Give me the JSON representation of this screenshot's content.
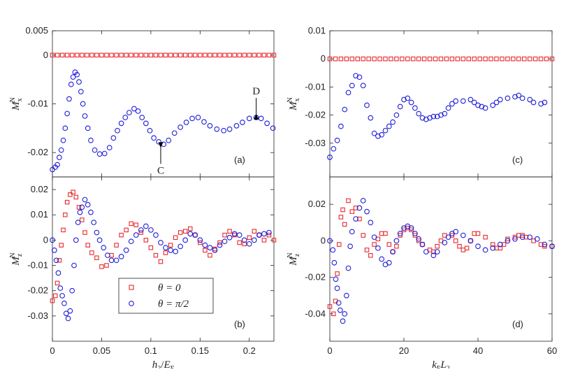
{
  "chart_data": [
    {
      "type": "scatter",
      "label": "(a)",
      "ylabel": [
        {
          "text": "M",
          "style": "i"
        },
        {
          "text": "x",
          "style": "sub"
        },
        {
          "text": "N",
          "style": "sup"
        }
      ],
      "xlim": [
        0,
        0.225
      ],
      "xticks": [
        0,
        0.05,
        0.1,
        0.15,
        0.2
      ],
      "xticklabels": false,
      "ylim": [
        -0.025,
        0.005
      ],
      "yticks": [
        -0.02,
        -0.01,
        0,
        0.005
      ],
      "annotations": [
        {
          "text": "C",
          "x": 0.11,
          "y": -0.0183,
          "side": "below"
        },
        {
          "text": "D",
          "x": 0.207,
          "y": -0.0128,
          "side": "above"
        }
      ],
      "series": [
        {
          "color": "#e8282d",
          "marker": "square",
          "x": [
            0,
            0.005,
            0.01,
            0.015,
            0.02,
            0.025,
            0.03,
            0.035,
            0.04,
            0.045,
            0.05,
            0.055,
            0.06,
            0.065,
            0.07,
            0.075,
            0.08,
            0.085,
            0.09,
            0.095,
            0.1,
            0.105,
            0.11,
            0.115,
            0.12,
            0.125,
            0.13,
            0.135,
            0.14,
            0.145,
            0.15,
            0.155,
            0.16,
            0.165,
            0.17,
            0.175,
            0.18,
            0.185,
            0.19,
            0.195,
            0.2,
            0.205,
            0.21,
            0.215,
            0.22,
            0.225
          ],
          "values": [
            0,
            0,
            0,
            0,
            0,
            0,
            0,
            0,
            0,
            0,
            0,
            0,
            0,
            0,
            0,
            0,
            0,
            0,
            0,
            0,
            0,
            0,
            0,
            0,
            0,
            0,
            0,
            0,
            0,
            0,
            0,
            0,
            0,
            0,
            0,
            0,
            0,
            0,
            0,
            0,
            0,
            0,
            0,
            0,
            0,
            0
          ]
        },
        {
          "color": "#1f1fd8",
          "marker": "circle",
          "x": [
            0,
            0.003,
            0.005,
            0.007,
            0.009,
            0.011,
            0.013,
            0.015,
            0.017,
            0.019,
            0.021,
            0.023,
            0.025,
            0.027,
            0.029,
            0.031,
            0.033,
            0.036,
            0.039,
            0.043,
            0.048,
            0.053,
            0.058,
            0.062,
            0.066,
            0.07,
            0.074,
            0.078,
            0.083,
            0.087,
            0.091,
            0.095,
            0.099,
            0.103,
            0.108,
            0.113,
            0.118,
            0.124,
            0.13,
            0.136,
            0.142,
            0.148,
            0.154,
            0.16,
            0.167,
            0.174,
            0.18,
            0.187,
            0.193,
            0.2,
            0.207,
            0.212,
            0.218,
            0.224
          ],
          "values": [
            -0.0235,
            -0.023,
            -0.0225,
            -0.021,
            -0.0195,
            -0.0175,
            -0.015,
            -0.012,
            -0.009,
            -0.006,
            -0.0045,
            -0.0035,
            -0.004,
            -0.0055,
            -0.0075,
            -0.01,
            -0.0125,
            -0.015,
            -0.0175,
            -0.0195,
            -0.0203,
            -0.0202,
            -0.019,
            -0.017,
            -0.0155,
            -0.014,
            -0.0128,
            -0.0118,
            -0.011,
            -0.0115,
            -0.0128,
            -0.014,
            -0.0155,
            -0.017,
            -0.0178,
            -0.0183,
            -0.0175,
            -0.016,
            -0.0148,
            -0.0138,
            -0.013,
            -0.0128,
            -0.0137,
            -0.0145,
            -0.0152,
            -0.0155,
            -0.0152,
            -0.0145,
            -0.0138,
            -0.013,
            -0.0128,
            -0.013,
            -0.014,
            -0.015
          ]
        }
      ]
    },
    {
      "type": "scatter",
      "label": "(b)",
      "ylabel": [
        {
          "text": "M",
          "style": "i"
        },
        {
          "text": "z",
          "style": "sub"
        },
        {
          "text": "N",
          "style": "sup"
        }
      ],
      "xlabel": [
        {
          "text": "h",
          "style": "i"
        },
        {
          "text": "2",
          "style": "sub"
        },
        {
          "text": "/",
          "style": "n"
        },
        {
          "text": "E",
          "style": "i"
        },
        {
          "text": "F",
          "style": "sub"
        }
      ],
      "xlim": [
        0,
        0.225
      ],
      "xticks": [
        0,
        0.05,
        0.1,
        0.15,
        0.2
      ],
      "ylim": [
        -0.04,
        0.025
      ],
      "yticks": [
        -0.03,
        -0.02,
        -0.01,
        0,
        0.01,
        0.02
      ],
      "legend": "lower center",
      "series": [
        {
          "name": "θ = 0",
          "color": "#e8282d",
          "marker": "square",
          "x": [
            0,
            0.003,
            0.005,
            0.007,
            0.009,
            0.011,
            0.013,
            0.015,
            0.018,
            0.021,
            0.024,
            0.027,
            0.03,
            0.033,
            0.036,
            0.04,
            0.045,
            0.05,
            0.055,
            0.06,
            0.065,
            0.07,
            0.075,
            0.08,
            0.085,
            0.09,
            0.095,
            0.1,
            0.105,
            0.11,
            0.115,
            0.12,
            0.125,
            0.13,
            0.135,
            0.14,
            0.145,
            0.15,
            0.155,
            0.16,
            0.165,
            0.17,
            0.175,
            0.18,
            0.185,
            0.19,
            0.195,
            0.2,
            0.205,
            0.21,
            0.215,
            0.22,
            0.225
          ],
          "values": [
            -0.024,
            -0.022,
            -0.017,
            -0.008,
            -0.002,
            0.004,
            0.01,
            0.015,
            0.018,
            0.019,
            0.017,
            0.013,
            0.008,
            0.003,
            -0.002,
            -0.005,
            -0.007,
            -0.0105,
            -0.01,
            -0.006,
            -0.002,
            0.002,
            0.004,
            0.0065,
            0.006,
            0.003,
            0,
            -0.003,
            -0.006,
            -0.0085,
            -0.005,
            -0.002,
            0.001,
            0.003,
            0.0035,
            0.0045,
            0.002,
            -0.001,
            -0.004,
            -0.006,
            -0.0035,
            -0.001,
            0.002,
            0.0035,
            0.002,
            -0.001,
            -0.0015,
            0.001,
            0.0035,
            0.002,
            0,
            0.002,
            0
          ]
        },
        {
          "name": "θ = π/2",
          "color": "#1f1fd8",
          "marker": "circle",
          "x": [
            0,
            0.002,
            0.004,
            0.006,
            0.008,
            0.01,
            0.012,
            0.014,
            0.016,
            0.018,
            0.02,
            0.022,
            0.024,
            0.026,
            0.028,
            0.03,
            0.033,
            0.036,
            0.039,
            0.042,
            0.045,
            0.048,
            0.052,
            0.056,
            0.06,
            0.065,
            0.07,
            0.075,
            0.08,
            0.085,
            0.09,
            0.095,
            0.1,
            0.105,
            0.11,
            0.115,
            0.12,
            0.125,
            0.13,
            0.135,
            0.14,
            0.145,
            0.15,
            0.155,
            0.16,
            0.165,
            0.17,
            0.175,
            0.18,
            0.185,
            0.19,
            0.195,
            0.2,
            0.205,
            0.21,
            0.215,
            0.22
          ],
          "values": [
            0,
            -0.004,
            -0.008,
            -0.013,
            -0.019,
            -0.022,
            -0.025,
            -0.029,
            -0.031,
            -0.028,
            -0.02,
            -0.01,
            0,
            0.007,
            0.011,
            0.013,
            0.016,
            0.014,
            0.011,
            0.007,
            0.003,
            0,
            -0.003,
            -0.006,
            -0.008,
            -0.008,
            -0.0065,
            -0.004,
            -0.0005,
            0.002,
            0.004,
            0.0055,
            0.004,
            0.002,
            -0.001,
            -0.003,
            -0.004,
            -0.0045,
            -0.0025,
            0,
            0.0025,
            0.002,
            0,
            -0.002,
            -0.003,
            -0.004,
            -0.002,
            -0.0005,
            0.001,
            0.0025,
            0.002,
            0,
            -0.0015,
            0,
            0.002,
            0.0025,
            0.003
          ]
        }
      ]
    },
    {
      "type": "scatter",
      "label": "(c)",
      "ylabel": [
        {
          "text": "M",
          "style": "i"
        },
        {
          "text": "x",
          "style": "sub"
        },
        {
          "text": "N",
          "style": "sup"
        }
      ],
      "xlim": [
        0,
        60
      ],
      "xticks": [
        0,
        20,
        40,
        60
      ],
      "xticklabels": false,
      "ylim": [
        -0.042,
        0.01
      ],
      "yticks": [
        -0.03,
        -0.02,
        -0.01,
        0,
        0.01
      ],
      "series": [
        {
          "color": "#e8282d",
          "marker": "square",
          "x": [
            0,
            1.5,
            3,
            4.5,
            6,
            7.5,
            9,
            10.5,
            12,
            13.5,
            15,
            16.5,
            18,
            19.5,
            21,
            22.5,
            24,
            25.5,
            27,
            28.5,
            30,
            31.5,
            33,
            34.5,
            36,
            37.5,
            39,
            40.5,
            42,
            43.5,
            45,
            46.5,
            48,
            49.5,
            51,
            52.5,
            54,
            55.5,
            57,
            58.5,
            60
          ],
          "values": [
            0,
            0,
            0,
            0,
            0,
            0,
            0,
            0,
            0,
            0,
            0,
            0,
            0,
            0,
            0,
            0,
            0,
            0,
            0,
            0,
            0,
            0,
            0,
            0,
            0,
            0,
            0,
            0,
            0,
            0,
            0,
            0,
            0,
            0,
            0,
            0,
            0,
            0,
            0,
            0,
            0
          ]
        },
        {
          "color": "#1f1fd8",
          "marker": "circle",
          "x": [
            0,
            1,
            2,
            3,
            4,
            5,
            6,
            7,
            8,
            9,
            10,
            11,
            12,
            13,
            14,
            15,
            16,
            17,
            18,
            19,
            20,
            21,
            22,
            23,
            24,
            25,
            26,
            27,
            28,
            29,
            30,
            31,
            32,
            33,
            34,
            36,
            38,
            39,
            40,
            41,
            42,
            44,
            45,
            46,
            48,
            50,
            51,
            52,
            54,
            55,
            57,
            58
          ],
          "values": [
            -0.035,
            -0.032,
            -0.029,
            -0.024,
            -0.018,
            -0.012,
            -0.0095,
            -0.006,
            -0.0065,
            -0.0095,
            -0.0165,
            -0.021,
            -0.0265,
            -0.0275,
            -0.027,
            -0.0255,
            -0.024,
            -0.0225,
            -0.02,
            -0.017,
            -0.0145,
            -0.014,
            -0.0155,
            -0.0175,
            -0.0195,
            -0.021,
            -0.0215,
            -0.021,
            -0.0205,
            -0.0205,
            -0.02,
            -0.0195,
            -0.0175,
            -0.016,
            -0.015,
            -0.015,
            -0.0145,
            -0.0155,
            -0.0165,
            -0.017,
            -0.0175,
            -0.0165,
            -0.0155,
            -0.0145,
            -0.014,
            -0.0135,
            -0.013,
            -0.014,
            -0.0145,
            -0.0155,
            -0.016,
            -0.0155
          ]
        }
      ]
    },
    {
      "type": "scatter",
      "label": "(d)",
      "ylabel": [
        {
          "text": "M",
          "style": "i"
        },
        {
          "text": "z",
          "style": "sub"
        },
        {
          "text": "N",
          "style": "sup"
        }
      ],
      "xlabel": [
        {
          "text": "k",
          "style": "i"
        },
        {
          "text": "F",
          "style": "sub"
        },
        {
          "text": "L",
          "style": "i"
        },
        {
          "text": "2",
          "style": "sub"
        }
      ],
      "xlim": [
        0,
        60
      ],
      "xticks": [
        0,
        20,
        40,
        60
      ],
      "ylim": [
        -0.055,
        0.035
      ],
      "yticks": [
        -0.04,
        -0.02,
        0,
        0.02
      ],
      "series": [
        {
          "color": "#e8282d",
          "marker": "square",
          "x": [
            0,
            1,
            1.5,
            2,
            2.5,
            3,
            3.5,
            4,
            5,
            6,
            7,
            8,
            9,
            10,
            11,
            12,
            13,
            14,
            15,
            16,
            17,
            18,
            19,
            20,
            21,
            22,
            23,
            24,
            25,
            27,
            28,
            29,
            30,
            31,
            33,
            34,
            35,
            36,
            37,
            38,
            39,
            40,
            42,
            44,
            45,
            46,
            47,
            48,
            50,
            51,
            52,
            53,
            55,
            57,
            58,
            60
          ],
          "values": [
            -0.036,
            -0.04,
            -0.033,
            -0.018,
            -0.002,
            0.013,
            0.017,
            0.009,
            0.022,
            0.016,
            0.018,
            0.012,
            0.003,
            -0.005,
            -0.008,
            -0.002,
            0.001,
            0.004,
            0.004,
            -0.002,
            -0.006,
            -0.003,
            0.003,
            0.006,
            0.007,
            0.006,
            0.003,
            0,
            -0.002,
            -0.005,
            -0.006,
            -0.003,
            0,
            0.003,
            0.003,
            0,
            -0.003,
            -0.005,
            -0.004,
            0,
            0.004,
            0.004,
            0.002,
            -0.002,
            -0.004,
            -0.004,
            -0.002,
            0.001,
            0.002,
            0.003,
            0.003,
            0.002,
            0,
            -0.002,
            -0.003,
            -0.003
          ]
        },
        {
          "color": "#1f1fd8",
          "marker": "circle",
          "x": [
            0,
            0.8,
            1.2,
            1.6,
            2,
            2.4,
            2.8,
            3.5,
            4,
            4.5,
            5,
            5.5,
            6,
            7,
            8,
            9,
            10,
            11,
            12,
            13,
            14,
            15,
            16,
            17,
            18,
            19,
            20,
            21,
            22,
            23,
            24,
            25,
            26,
            28,
            29,
            31,
            32,
            33,
            34,
            36,
            38,
            40,
            42,
            44,
            46,
            48,
            50,
            52,
            54,
            56,
            58,
            60
          ],
          "values": [
            0,
            -0.005,
            -0.012,
            -0.021,
            -0.026,
            -0.034,
            -0.038,
            -0.044,
            -0.04,
            -0.03,
            -0.015,
            -0.003,
            0.005,
            0.012,
            0.018,
            0.022,
            0.016,
            0.01,
            0.002,
            -0.004,
            -0.01,
            -0.013,
            -0.012,
            -0.006,
            0,
            0.004,
            0.007,
            0.008,
            0.007,
            0.004,
            0.001,
            -0.002,
            -0.006,
            -0.008,
            -0.006,
            -0.001,
            0.002,
            0.004,
            0.005,
            0.003,
            0,
            -0.003,
            -0.005,
            -0.004,
            -0.002,
            0,
            0.001,
            0.002,
            0.002,
            0.001,
            -0.002,
            -0.003
          ]
        }
      ]
    }
  ]
}
